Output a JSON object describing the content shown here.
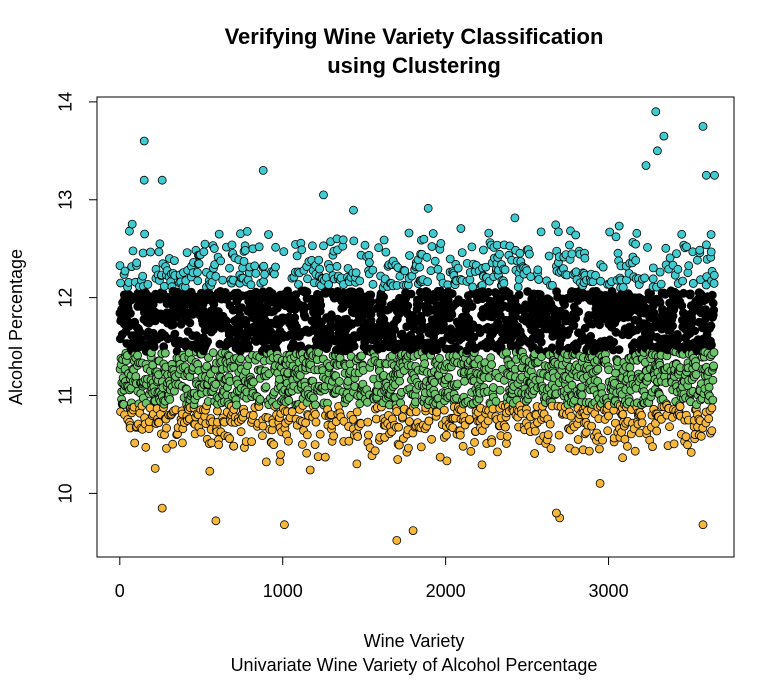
{
  "chart_data": {
    "type": "scatter",
    "title_lines": [
      "Verifying Wine Variety Classification",
      "using Clustering"
    ],
    "xlabel": "Wine Variety",
    "subtitle": "Univariate Wine Variety of Alcohol Percentage",
    "ylabel": "Alcohol Percentage",
    "xlim": [
      -140,
      3770
    ],
    "ylim": [
      9.35,
      14.05
    ],
    "x_ticks": [
      0,
      1000,
      2000,
      3000
    ],
    "y_ticks": [
      10,
      11,
      12,
      13,
      14
    ],
    "grid": false,
    "legend": "none",
    "n_points": 3650,
    "clusters": [
      {
        "color": "#F5B83B",
        "y_range": [
          9.5,
          10.9
        ],
        "description_points": []
      },
      {
        "color": "#6CC46A",
        "y_range": [
          10.9,
          11.45
        ],
        "description_points": []
      },
      {
        "color": "#000000",
        "y_range": [
          11.45,
          12.1
        ],
        "description_points": []
      },
      {
        "color": "#3FCBD0",
        "y_range": [
          12.1,
          13.9
        ],
        "description_points": []
      }
    ],
    "outliers": [
      {
        "x": 150,
        "y": 13.6,
        "cluster": 3
      },
      {
        "x": 150,
        "y": 13.2,
        "cluster": 3
      },
      {
        "x": 260,
        "y": 13.2,
        "cluster": 3
      },
      {
        "x": 880,
        "y": 13.3,
        "cluster": 3
      },
      {
        "x": 1250,
        "y": 13.05,
        "cluster": 3
      },
      {
        "x": 3290,
        "y": 13.9,
        "cluster": 3
      },
      {
        "x": 3340,
        "y": 13.65,
        "cluster": 3
      },
      {
        "x": 3580,
        "y": 13.75,
        "cluster": 3
      },
      {
        "x": 3230,
        "y": 13.35,
        "cluster": 3
      },
      {
        "x": 3300,
        "y": 13.5,
        "cluster": 3
      },
      {
        "x": 3600,
        "y": 13.25,
        "cluster": 3
      },
      {
        "x": 3650,
        "y": 13.25,
        "cluster": 3
      },
      {
        "x": 1700,
        "y": 9.52,
        "cluster": 0
      },
      {
        "x": 1800,
        "y": 9.62,
        "cluster": 0
      },
      {
        "x": 590,
        "y": 9.72,
        "cluster": 0
      },
      {
        "x": 1010,
        "y": 9.68,
        "cluster": 0
      },
      {
        "x": 3580,
        "y": 9.68,
        "cluster": 0
      },
      {
        "x": 260,
        "y": 9.85,
        "cluster": 0
      },
      {
        "x": 2700,
        "y": 9.75,
        "cluster": 0
      },
      {
        "x": 2680,
        "y": 9.8,
        "cluster": 0
      }
    ]
  }
}
